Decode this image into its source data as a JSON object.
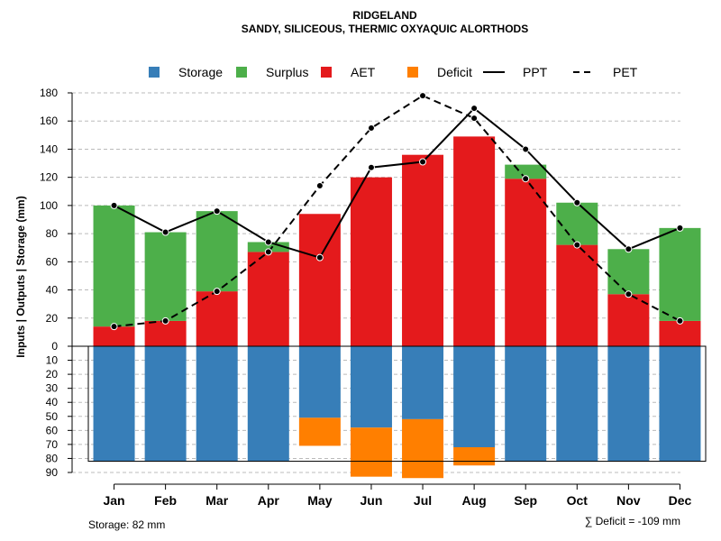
{
  "chart_data": {
    "type": "bar",
    "title": "RIDGELAND",
    "subtitle": "SANDY, SILICEOUS, THERMIC OXYAQUIC ALORTHODS",
    "ylabel": "Inputs | Outputs | Storage    (mm)",
    "categories": [
      "Jan",
      "Feb",
      "Mar",
      "Apr",
      "May",
      "Jun",
      "Jul",
      "Aug",
      "Sep",
      "Oct",
      "Nov",
      "Dec"
    ],
    "upper_ylim": [
      0,
      180
    ],
    "upper_ticks": [
      0,
      20,
      40,
      60,
      80,
      100,
      120,
      140,
      160,
      180
    ],
    "lower_ylim": [
      0,
      90
    ],
    "lower_ticks": [
      10,
      20,
      30,
      40,
      50,
      60,
      70,
      80,
      90
    ],
    "series": [
      {
        "name": "AET",
        "values": [
          14,
          18,
          39,
          67,
          94,
          120,
          136,
          149,
          119,
          72,
          37,
          18
        ]
      },
      {
        "name": "Surplus",
        "values": [
          86,
          63,
          57,
          7,
          0,
          0,
          0,
          0,
          10,
          30,
          32,
          66
        ]
      },
      {
        "name": "Storage",
        "values": [
          82,
          82,
          82,
          82,
          51,
          58,
          52,
          72,
          82,
          82,
          82,
          82
        ]
      },
      {
        "name": "Deficit",
        "values": [
          0,
          0,
          0,
          0,
          20,
          35,
          42,
          13,
          0,
          0,
          0,
          0
        ]
      },
      {
        "name": "PPT",
        "values": [
          100,
          81,
          96,
          74,
          63,
          127,
          131,
          169,
          140,
          102,
          69,
          84
        ]
      },
      {
        "name": "PET",
        "values": [
          14,
          18,
          39,
          67,
          114,
          155,
          178,
          162,
          119,
          72,
          37,
          18
        ]
      }
    ],
    "legend": [
      {
        "name": "Storage",
        "color": "#377EB8",
        "kind": "box"
      },
      {
        "name": "Surplus",
        "color": "#4DAF4A",
        "kind": "box"
      },
      {
        "name": "AET",
        "color": "#E41A1C",
        "kind": "box"
      },
      {
        "name": "Deficit",
        "color": "#FF7F00",
        "kind": "box"
      },
      {
        "name": "PPT",
        "color": "#000000",
        "kind": "solid"
      },
      {
        "name": "PET",
        "color": "#000000",
        "kind": "dashed"
      }
    ],
    "legend_position": "top",
    "storage_note": "Storage: 82 mm",
    "deficit_note": "∑ Deficit = -109 mm",
    "colors": {
      "storage": "#377EB8",
      "surplus": "#4DAF4A",
      "aet": "#E41A1C",
      "deficit": "#FF7F00",
      "line": "#000000",
      "grid": "#bbbbbb"
    }
  }
}
